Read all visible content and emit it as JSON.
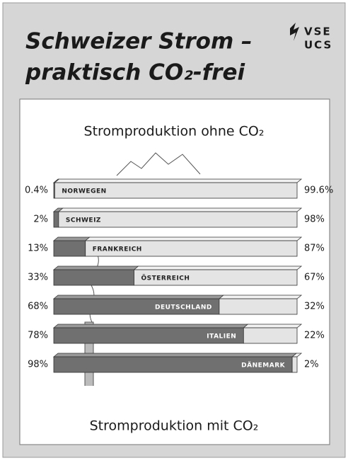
{
  "title_lines": [
    "Schweizer Strom –",
    "praktisch CO₂-frei"
  ],
  "logo_lines": [
    "VSE",
    "UCS"
  ],
  "chart_data": {
    "type": "stacked-bar-horizontal",
    "top_label": "Stromproduktion ohne CO₂",
    "bottom_label": "Stromproduktion mit CO₂",
    "categories": [
      "NORWEGEN",
      "SCHWEIZ",
      "FRANKREICH",
      "ÖSTERREICH",
      "DEUTSCHLAND",
      "ITALIEN",
      "DÄNEMARK"
    ],
    "xlim": [
      0,
      100
    ],
    "series": [
      {
        "color": "#707070",
        "values": [
          0.4,
          2,
          13,
          33,
          68,
          78,
          98
        ],
        "value_labels": [
          "0.4%",
          "2%",
          "13%",
          "33%",
          "68%",
          "78%",
          "98%"
        ]
      },
      {
        "color": "#e4e4e4",
        "values": [
          99.6,
          98,
          87,
          67,
          32,
          22,
          2
        ],
        "value_labels": [
          "99.6%",
          "98%",
          "87%",
          "67%",
          "32%",
          "22%",
          "2%"
        ]
      }
    ]
  }
}
